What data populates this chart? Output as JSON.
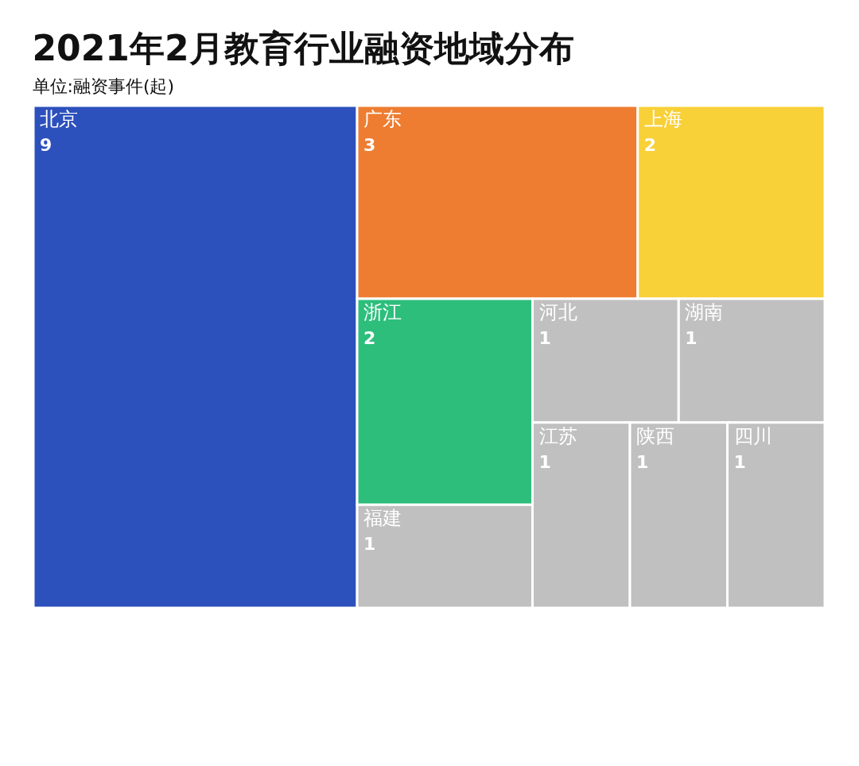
{
  "chart_data": {
    "type": "other",
    "title": "2021年2月教育行业融资地域分布",
    "subtitle": "单位:融资事件(起)",
    "categories": [
      "北京",
      "广东",
      "上海",
      "浙江",
      "福建",
      "河北",
      "湖南",
      "江苏",
      "陕西",
      "四川"
    ],
    "values": [
      9,
      3,
      2,
      2,
      1,
      1,
      1,
      1,
      1,
      1
    ],
    "colors": [
      "#2c50bc",
      "#ee7d31",
      "#f8d038",
      "#2dbe7c",
      "#c0c0c0",
      "#c0c0c0",
      "#c0c0c0",
      "#c0c0c0",
      "#c0c0c0",
      "#c0c0c0"
    ],
    "data_labels": true
  }
}
